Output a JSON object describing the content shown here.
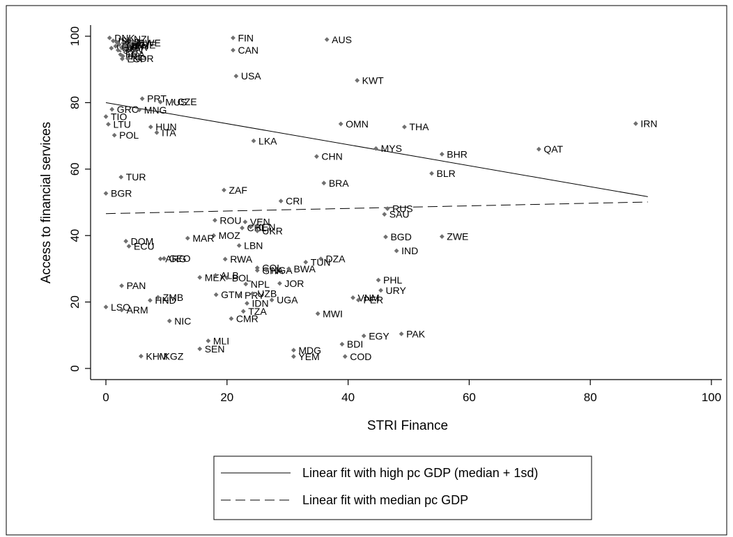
{
  "chart_data": {
    "type": "scatter",
    "title": "",
    "xlabel": "STRI Finance",
    "ylabel": "Access to financial services",
    "xlim": [
      -3,
      102
    ],
    "ylim": [
      -3,
      103
    ],
    "xticks": [
      0,
      20,
      40,
      60,
      80,
      100
    ],
    "yticks": [
      0,
      20,
      40,
      60,
      80,
      100
    ],
    "grid": false,
    "legend_position": "bottom",
    "points": [
      {
        "label": "DNK",
        "x": 0.6,
        "y": 99.5
      },
      {
        "label": "NZL",
        "x": 3.8,
        "y": 99.2
      },
      {
        "label": "ISL",
        "x": 1.2,
        "y": 98.6
      },
      {
        "label": "NLD",
        "x": 1.8,
        "y": 98.2
      },
      {
        "label": "DEU",
        "x": 3.0,
        "y": 97.9
      },
      {
        "label": "BEL",
        "x": 2.2,
        "y": 97.5
      },
      {
        "label": "SWE",
        "x": 4.6,
        "y": 98.0
      },
      {
        "label": "AUT",
        "x": 1.6,
        "y": 97.0
      },
      {
        "label": "GBR",
        "x": 2.6,
        "y": 96.6
      },
      {
        "label": "JPN",
        "x": 3.2,
        "y": 97.1
      },
      {
        "label": "CHE",
        "x": 4.0,
        "y": 97.4
      },
      {
        "label": "LUX",
        "x": 0.9,
        "y": 96.4
      },
      {
        "label": "SVN",
        "x": 2.0,
        "y": 95.8
      },
      {
        "label": "FRA",
        "x": 2.4,
        "y": 94.5
      },
      {
        "label": "IRL",
        "x": 2.8,
        "y": 94.0
      },
      {
        "label": "ESP",
        "x": 2.7,
        "y": 93.2
      },
      {
        "label": "KOR",
        "x": 3.6,
        "y": 93.3
      },
      {
        "label": "FIN",
        "x": 21.0,
        "y": 99.5
      },
      {
        "label": "AUS",
        "x": 36.5,
        "y": 99.0
      },
      {
        "label": "CAN",
        "x": 21.0,
        "y": 95.8
      },
      {
        "label": "USA",
        "x": 21.5,
        "y": 88.0
      },
      {
        "label": "KWT",
        "x": 41.5,
        "y": 86.7
      },
      {
        "label": "PRT",
        "x": 6.0,
        "y": 81.2
      },
      {
        "label": "MUS",
        "x": 9.0,
        "y": 80.2
      },
      {
        "label": "CZE",
        "x": 11.0,
        "y": 80.3
      },
      {
        "label": "GRC",
        "x": 1.0,
        "y": 78.0
      },
      {
        "label": "MNG",
        "x": 5.5,
        "y": 77.8
      },
      {
        "label": "TIO",
        "x": 0.0,
        "y": 75.8
      },
      {
        "label": "LTU",
        "x": 0.4,
        "y": 73.5
      },
      {
        "label": "HUN",
        "x": 7.4,
        "y": 72.7
      },
      {
        "label": "ITA",
        "x": 8.4,
        "y": 71.0
      },
      {
        "label": "POL",
        "x": 1.4,
        "y": 70.2
      },
      {
        "label": "OMN",
        "x": 38.8,
        "y": 73.6
      },
      {
        "label": "THA",
        "x": 49.3,
        "y": 72.7
      },
      {
        "label": "IRN",
        "x": 87.5,
        "y": 73.7
      },
      {
        "label": "LKA",
        "x": 24.4,
        "y": 68.5
      },
      {
        "label": "MYS",
        "x": 44.6,
        "y": 66.2
      },
      {
        "label": "QAT",
        "x": 71.5,
        "y": 66.0
      },
      {
        "label": "BHR",
        "x": 55.5,
        "y": 64.5
      },
      {
        "label": "CHN",
        "x": 34.8,
        "y": 63.8
      },
      {
        "label": "BLR",
        "x": 53.8,
        "y": 58.7
      },
      {
        "label": "TUR",
        "x": 2.5,
        "y": 57.6
      },
      {
        "label": "BRA",
        "x": 36.0,
        "y": 55.8
      },
      {
        "label": "ZAF",
        "x": 19.5,
        "y": 53.7
      },
      {
        "label": "BGR",
        "x": 0.0,
        "y": 52.7
      },
      {
        "label": "CRI",
        "x": 28.9,
        "y": 50.4
      },
      {
        "label": "RUS",
        "x": 46.5,
        "y": 48.1
      },
      {
        "label": "SAU",
        "x": 46.0,
        "y": 46.4
      },
      {
        "label": "ROU",
        "x": 18.0,
        "y": 44.6
      },
      {
        "label": "VEN",
        "x": 23.0,
        "y": 44.1
      },
      {
        "label": "CHL",
        "x": 22.5,
        "y": 42.3
      },
      {
        "label": "KEN",
        "x": 23.9,
        "y": 42.6
      },
      {
        "label": "UKR",
        "x": 25.0,
        "y": 41.4
      },
      {
        "label": "MOZ",
        "x": 17.8,
        "y": 40.0
      },
      {
        "label": "MAR",
        "x": 13.5,
        "y": 39.2
      },
      {
        "label": "BGD",
        "x": 46.2,
        "y": 39.6
      },
      {
        "label": "ZWE",
        "x": 55.5,
        "y": 39.7
      },
      {
        "label": "DOM",
        "x": 3.3,
        "y": 38.3
      },
      {
        "label": "ECU",
        "x": 3.8,
        "y": 36.8
      },
      {
        "label": "LBN",
        "x": 22.0,
        "y": 37.0
      },
      {
        "label": "IND",
        "x": 48.0,
        "y": 35.4
      },
      {
        "label": "ARG",
        "x": 9.0,
        "y": 33.0
      },
      {
        "label": "GEO",
        "x": 9.6,
        "y": 33.1
      },
      {
        "label": "RWA",
        "x": 19.7,
        "y": 32.9
      },
      {
        "label": "DZA",
        "x": 35.5,
        "y": 33.0
      },
      {
        "label": "TUN",
        "x": 33.0,
        "y": 32.0
      },
      {
        "label": "COL",
        "x": 25.0,
        "y": 30.3
      },
      {
        "label": "GHA",
        "x": 25.0,
        "y": 29.5
      },
      {
        "label": "NGA",
        "x": 26.5,
        "y": 29.6
      },
      {
        "label": "BWA",
        "x": 30.2,
        "y": 30.0
      },
      {
        "label": "MEX",
        "x": 15.5,
        "y": 27.4
      },
      {
        "label": "ALB",
        "x": 18.1,
        "y": 28.0
      },
      {
        "label": "BOL",
        "x": 20.0,
        "y": 27.3
      },
      {
        "label": "PHL",
        "x": 45.0,
        "y": 26.6
      },
      {
        "label": "PAN",
        "x": 2.6,
        "y": 24.9
      },
      {
        "label": "NPL",
        "x": 23.1,
        "y": 25.4
      },
      {
        "label": "JOR",
        "x": 28.7,
        "y": 25.6
      },
      {
        "label": "URY",
        "x": 45.4,
        "y": 23.5
      },
      {
        "label": "GTM",
        "x": 18.2,
        "y": 22.2
      },
      {
        "label": "PRY",
        "x": 22.1,
        "y": 22.0
      },
      {
        "label": "UZB",
        "x": 24.2,
        "y": 22.5
      },
      {
        "label": "ZMB",
        "x": 8.6,
        "y": 21.4
      },
      {
        "label": "HND",
        "x": 7.3,
        "y": 20.5
      },
      {
        "label": "UGA",
        "x": 27.4,
        "y": 20.6
      },
      {
        "label": "VNM",
        "x": 40.8,
        "y": 21.3
      },
      {
        "label": "PER",
        "x": 41.7,
        "y": 20.6
      },
      {
        "label": "IDN",
        "x": 23.3,
        "y": 19.6
      },
      {
        "label": "LSO",
        "x": 0.0,
        "y": 18.5
      },
      {
        "label": "ARM",
        "x": 2.6,
        "y": 17.6
      },
      {
        "label": "TZA",
        "x": 22.7,
        "y": 17.2
      },
      {
        "label": "MWI",
        "x": 35.0,
        "y": 16.5
      },
      {
        "label": "CMR",
        "x": 20.7,
        "y": 15.0
      },
      {
        "label": "NIC",
        "x": 10.5,
        "y": 14.3
      },
      {
        "label": "PAK",
        "x": 48.8,
        "y": 10.4
      },
      {
        "label": "EGY",
        "x": 42.6,
        "y": 9.8
      },
      {
        "label": "MLI",
        "x": 16.9,
        "y": 8.3
      },
      {
        "label": "BDI",
        "x": 39.0,
        "y": 7.3
      },
      {
        "label": "SEN",
        "x": 15.5,
        "y": 5.9
      },
      {
        "label": "MDG",
        "x": 31.0,
        "y": 5.5
      },
      {
        "label": "KHM",
        "x": 5.8,
        "y": 3.7
      },
      {
        "label": "KGZ",
        "x": 8.7,
        "y": 3.7
      },
      {
        "label": "YEM",
        "x": 31.0,
        "y": 3.6
      },
      {
        "label": "COD",
        "x": 39.5,
        "y": 3.6
      }
    ],
    "series": [
      {
        "name": "Linear fit with high pc GDP (median + 1sd)",
        "style": "solid",
        "x": [
          0,
          89.5
        ],
        "y": [
          80.0,
          51.7
        ]
      },
      {
        "name": "Linear fit with median pc GDP",
        "style": "dashed",
        "x": [
          0,
          89.5
        ],
        "y": [
          46.6,
          50.1
        ]
      }
    ]
  },
  "colors": {
    "marker": "#707070",
    "line": "#000000",
    "background": "#ffffff"
  }
}
